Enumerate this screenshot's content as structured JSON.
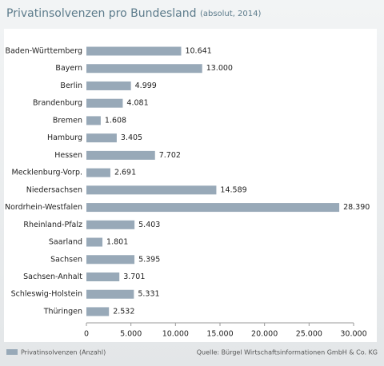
{
  "chart_data": {
    "type": "bar",
    "title": "Privatinsolvenzen pro Bundesland",
    "subtitle": "(absolut, 2014)",
    "categories": [
      "Baden-Württemberg",
      "Bayern",
      "Berlin",
      "Brandenburg",
      "Bremen",
      "Hamburg",
      "Hessen",
      "Mecklenburg-Vorp.",
      "Niedersachsen",
      "Nordrhein-Westfalen",
      "Rheinland-Pfalz",
      "Saarland",
      "Sachsen",
      "Sachsen-Anhalt",
      "Schleswig-Holstein",
      "Thüringen"
    ],
    "series": [
      {
        "name": "Privatinsolvenzen (Anzahl)",
        "color": "#98a9b8",
        "values": [
          10641,
          13000,
          4999,
          4081,
          1608,
          3405,
          7702,
          2691,
          14589,
          28390,
          5403,
          1801,
          5395,
          3701,
          5331,
          2532
        ],
        "value_labels": [
          "10.641",
          "13.000",
          "4.999",
          "4.081",
          "1.608",
          "3.405",
          "7.702",
          "2.691",
          "14.589",
          "28.390",
          "5.403",
          "1.801",
          "5.395",
          "3.701",
          "5.331",
          "2.532"
        ]
      }
    ],
    "xlim": [
      0,
      30000
    ],
    "xticks": [
      0,
      {
        "value": 5000,
        "label": "5.000"
      },
      {
        "value": 10000,
        "label": "10.000"
      },
      {
        "value": 15000,
        "label": "15.000"
      },
      {
        "value": 20000,
        "label": "20.000"
      },
      {
        "value": 25000,
        "label": "25.000"
      },
      {
        "value": 30000,
        "label": "30.000"
      }
    ],
    "source": "Quelle: Bürgel Wirtschaftsinformationen GmbH & Co. KG"
  }
}
